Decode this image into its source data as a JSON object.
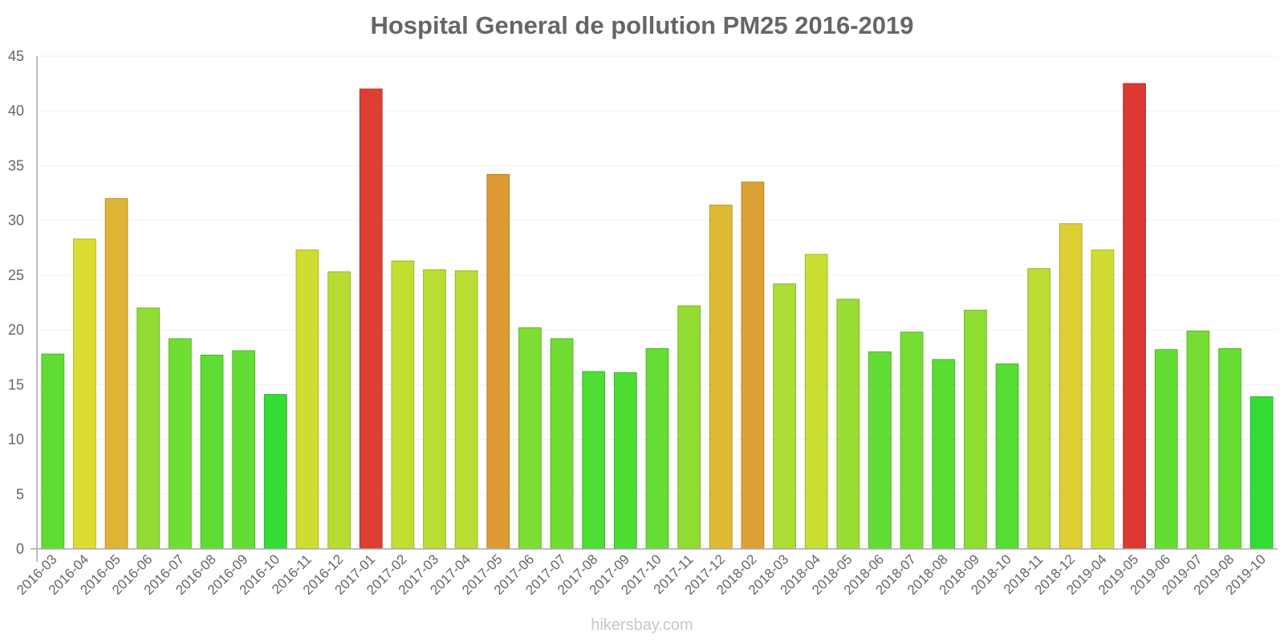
{
  "chart_data": {
    "type": "bar",
    "title": "Hospital General de pollution PM25 2016-2019",
    "xlabel": "",
    "ylabel": "",
    "ylim": [
      0,
      45
    ],
    "yticks": [
      0,
      5,
      10,
      15,
      20,
      25,
      30,
      35,
      40,
      45
    ],
    "grid": true,
    "categories": [
      "2016-03",
      "2016-04",
      "2016-05",
      "2016-06",
      "2016-07",
      "2016-08",
      "2016-09",
      "2016-10",
      "2016-11",
      "2016-12",
      "2017-01",
      "2017-02",
      "2017-03",
      "2017-04",
      "2017-05",
      "2017-06",
      "2017-07",
      "2017-08",
      "2017-09",
      "2017-10",
      "2017-11",
      "2017-12",
      "2018-02",
      "2018-03",
      "2018-04",
      "2018-05",
      "2018-06",
      "2018-07",
      "2018-08",
      "2018-09",
      "2018-10",
      "2018-11",
      "2018-12",
      "2019-04",
      "2019-05",
      "2019-06",
      "2019-07",
      "2019-08",
      "2019-10"
    ],
    "values": [
      17.8,
      28.3,
      32,
      22,
      19.2,
      17.7,
      18.1,
      14.1,
      27.3,
      25.3,
      42,
      26.3,
      25.5,
      25.4,
      34.2,
      20.2,
      19.2,
      16.2,
      16.1,
      18.3,
      22.2,
      31.4,
      33.5,
      24.2,
      26.9,
      22.8,
      18,
      19.8,
      17.3,
      21.8,
      16.9,
      25.6,
      29.7,
      27.3,
      42.5,
      18.2,
      19.9,
      18.3,
      13.9
    ],
    "color_scale": [
      "#33dd33",
      "#dddd33",
      "#dd3333"
    ]
  },
  "watermark": "hikersbay.com"
}
